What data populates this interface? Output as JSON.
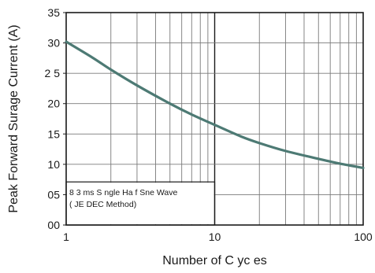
{
  "chart_data": {
    "type": "line",
    "title": "",
    "xlabel": "Number of C yc es",
    "ylabel": "Peak Forward Surage Current (A)",
    "x_scale": "log",
    "xlim": [
      1,
      100
    ],
    "ylim": [
      0,
      35
    ],
    "x_ticks": [
      1,
      10,
      100
    ],
    "x_tick_labels": [
      "1",
      "10",
      "100"
    ],
    "y_ticks": [
      0,
      5,
      10,
      15,
      20,
      25,
      30,
      35
    ],
    "y_tick_labels": [
      "00",
      "05",
      "10",
      "15",
      "20",
      "2 5",
      "30",
      "35"
    ],
    "grid": true,
    "series": [
      {
        "name": "",
        "color": "#4d7a74",
        "x": [
          1,
          1.5,
          2,
          3,
          5,
          7,
          10,
          15,
          20,
          30,
          50,
          70,
          100
        ],
        "y": [
          30.2,
          27.6,
          25.6,
          23.0,
          20.0,
          18.2,
          16.5,
          14.6,
          13.5,
          12.2,
          10.9,
          10.1,
          9.4
        ]
      }
    ],
    "annotation": {
      "line1": "8 3 ms S ngle Ha f Sne Wave",
      "line2": "( JE DEC Method)"
    }
  }
}
